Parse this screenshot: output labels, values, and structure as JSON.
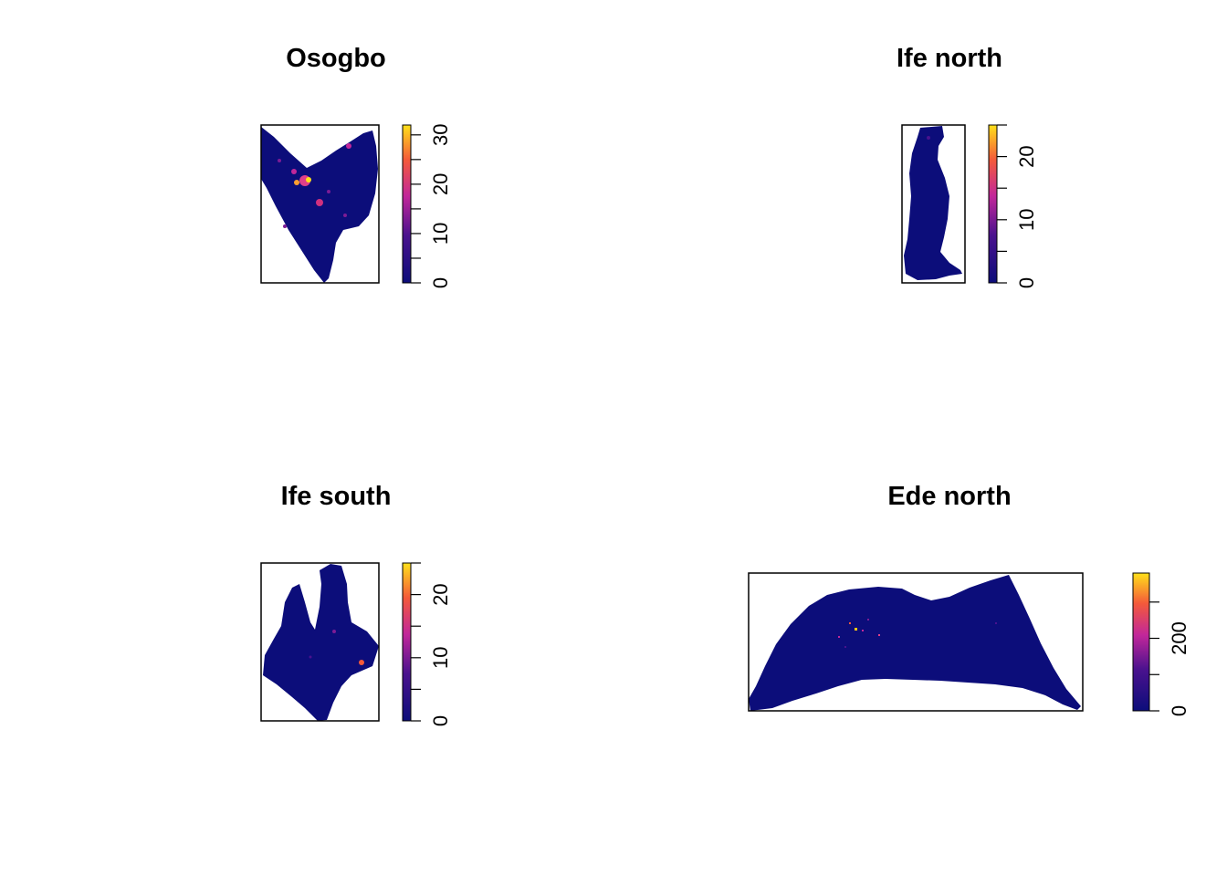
{
  "colors": {
    "background": "#ffffff",
    "raster_low": "#0c0d7a",
    "raster_mid": "#c2279a",
    "raster_high": "#ffc814",
    "frame": "#000000"
  },
  "panels": [
    {
      "title": "Osogbo",
      "legend": {
        "min": 0,
        "max": 32,
        "ticks": [
          "0",
          "10",
          "20",
          "30"
        ]
      }
    },
    {
      "title": "Ife north",
      "legend": {
        "min": 0,
        "max": 25,
        "ticks": [
          "0",
          "10",
          "20"
        ]
      }
    },
    {
      "title": "Ife south",
      "legend": {
        "min": 0,
        "max": 25,
        "ticks": [
          "0",
          "10",
          "20"
        ]
      }
    },
    {
      "title": "Ede north",
      "legend": {
        "min": 0,
        "max": 380,
        "ticks": [
          "0",
          "200"
        ]
      }
    }
  ]
}
